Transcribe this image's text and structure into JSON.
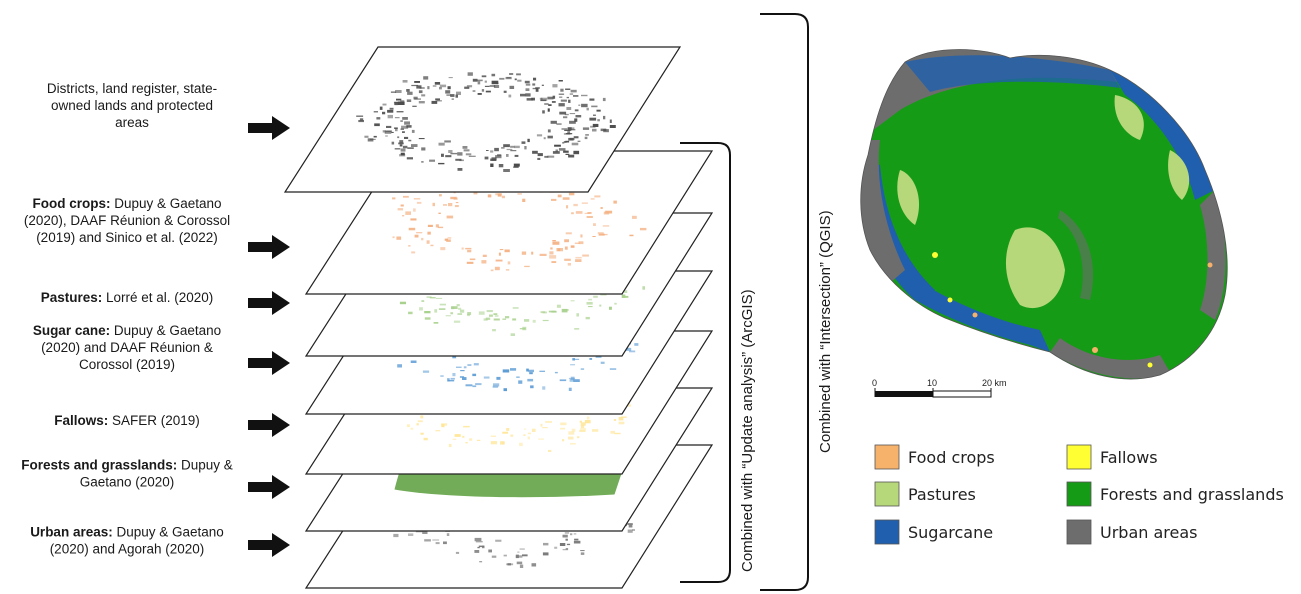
{
  "layers": [
    {
      "id": "base",
      "bold": "",
      "text": [
        "Districts, land register, state-",
        "owned lands and protected",
        "areas"
      ],
      "color": "#4a4a4a"
    },
    {
      "id": "food",
      "bold": "Food crops:",
      "text": [
        "Dupuy & Gaetano",
        "(2020), DAAF Réunion & Corossol",
        "(2019) and Sinico et al. (2022)"
      ],
      "color": "#f4b183"
    },
    {
      "id": "pastures",
      "bold": "Pastures:",
      "text": [
        "Lorré et al. (2020)"
      ],
      "color": "#a9d18e"
    },
    {
      "id": "sugar",
      "bold": "Sugar cane:",
      "text": [
        "Dupuy & Gaetano",
        "(2020) and DAAF Réunion &",
        "Corossol (2019)"
      ],
      "color": "#5b9bd5"
    },
    {
      "id": "fallows",
      "bold": "Fallows:",
      "text": [
        "SAFER (2019)"
      ],
      "color": "#ffe699"
    },
    {
      "id": "forests",
      "bold": "Forests and grasslands:",
      "text": [
        "Dupuy &",
        "Gaetano (2020)"
      ],
      "color": "#6aa84f"
    },
    {
      "id": "urban",
      "bold": "Urban areas:",
      "text": [
        "Dupuy & Gaetano",
        "(2020) and  Agorah (2020)"
      ],
      "color": "#777777"
    }
  ],
  "brackets": {
    "inner": "Combined with “Update analysis” (ArcGIS)",
    "outer": "Combined with “Intersection” (QGIS)"
  },
  "scale_bar": {
    "ticks": [
      "0",
      "10",
      "20 km"
    ]
  },
  "legend": [
    {
      "label": "Food crops",
      "color": "#f6b26b"
    },
    {
      "label": "Fallows",
      "color": "#ffff33"
    },
    {
      "label": "Pastures",
      "color": "#b6d77a"
    },
    {
      "label": "Forests and grasslands",
      "color": "#169b16"
    },
    {
      "label": "Sugarcane",
      "color": "#1f5fae"
    },
    {
      "label": "Urban areas",
      "color": "#6d6d6d"
    }
  ]
}
